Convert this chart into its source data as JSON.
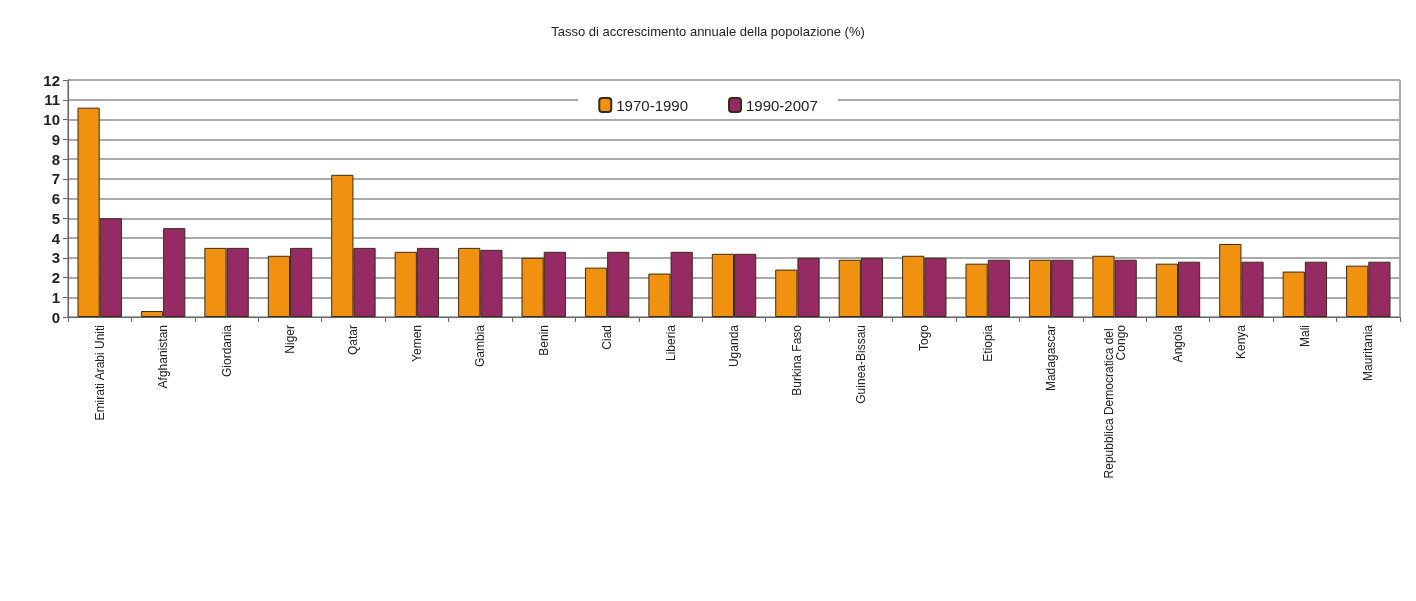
{
  "chart_data": {
    "type": "bar",
    "title": "Tasso di accrescimento annuale della popolazione (%)",
    "categories": [
      "Emirati Arabi Uniti",
      "Afghanistan",
      "Giordania",
      "Niger",
      "Qatar",
      "Yemen",
      "Gambia",
      "Benin",
      "Ciad",
      "Liberia",
      "Uganda",
      "Burkina Faso",
      "Guinea-Bissau",
      "Togo",
      "Etiopia",
      "Madagascar",
      "Repubblica Democratica del Congo",
      "Angola",
      "Kenya",
      "Mali",
      "Mauritania"
    ],
    "series": [
      {
        "name": "1970-1990",
        "color": "#f0920f",
        "values": [
          10.6,
          0.3,
          3.5,
          3.1,
          7.2,
          3.3,
          3.5,
          3.0,
          2.5,
          2.2,
          3.2,
          2.4,
          2.9,
          3.1,
          2.7,
          2.9,
          3.1,
          2.7,
          3.7,
          2.3,
          2.6
        ]
      },
      {
        "name": "1990-2007",
        "color": "#962b63",
        "values": [
          5.0,
          4.5,
          3.5,
          3.5,
          3.5,
          3.5,
          3.4,
          3.3,
          3.3,
          3.3,
          3.2,
          3.0,
          3.0,
          3.0,
          2.9,
          2.9,
          2.9,
          2.8,
          2.8,
          2.8,
          2.8
        ]
      }
    ],
    "ylim": [
      0,
      12
    ],
    "yticks": [
      0,
      1,
      2,
      3,
      4,
      5,
      6,
      7,
      8,
      9,
      10,
      11,
      12
    ],
    "grid": "y",
    "legend": "top"
  }
}
